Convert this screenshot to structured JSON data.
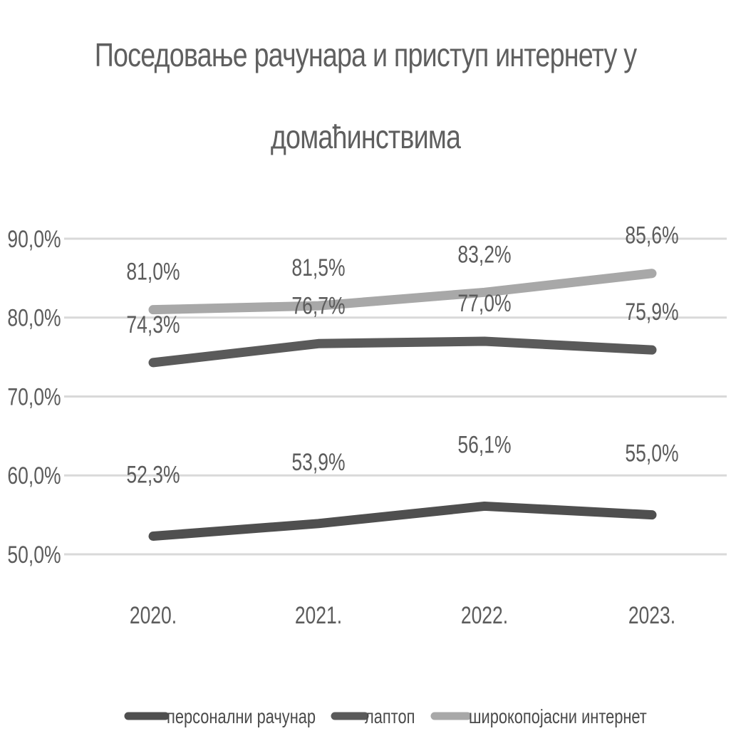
{
  "chart_data": {
    "type": "line",
    "title_lines": [
      "Поседовање рачунара и приступ интернету у",
      "домаћинствима"
    ],
    "title": "Поседовање рачунара и приступ интернету у домаћинствима",
    "xlabel": "",
    "ylabel": "",
    "categories": [
      "2020.",
      "2021.",
      "2022.",
      "2023."
    ],
    "ylim": [
      50,
      90
    ],
    "yticks": [
      50,
      60,
      70,
      80,
      90
    ],
    "ytick_labels": [
      "50,0%",
      "60,0%",
      "70,0%",
      "80,0%",
      "90,0%"
    ],
    "grid": true,
    "legend_position": "bottom",
    "series": [
      {
        "name": "персонални рачунар",
        "values": [
          52.3,
          53.9,
          56.1,
          55.0
        ],
        "labels": [
          "52,3%",
          "53,9%",
          "56,1%",
          "55,0%"
        ],
        "color": "#4f4f4f"
      },
      {
        "name": "лаптоп",
        "values": [
          74.3,
          76.7,
          77.0,
          75.9
        ],
        "labels": [
          "74,3%",
          "76,7%",
          "77,0%",
          "75,9%"
        ],
        "color": "#5a5a5a"
      },
      {
        "name": "широкопојасни интернет",
        "values": [
          81.0,
          81.5,
          83.2,
          85.6
        ],
        "labels": [
          "81,0%",
          "81,5%",
          "83,2%",
          "85,6%"
        ],
        "color": "#a8a8a8"
      }
    ],
    "gridline_color": "#d9d9d9"
  }
}
